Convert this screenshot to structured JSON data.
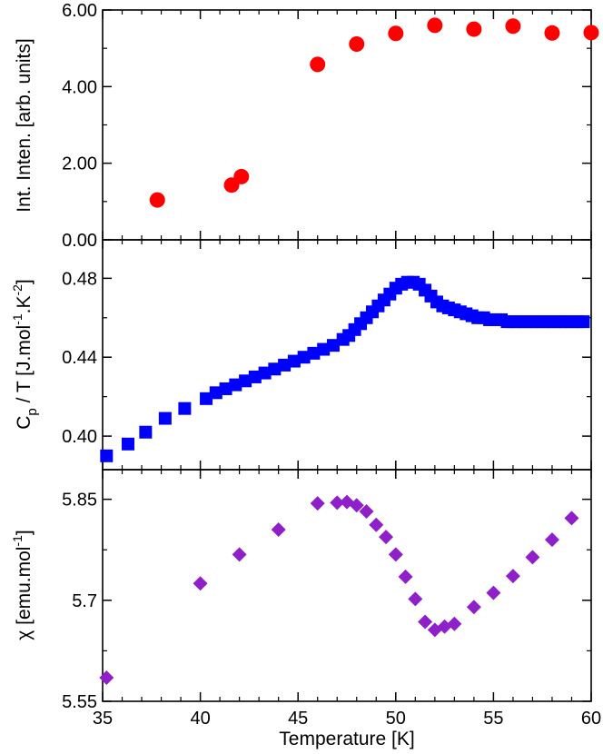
{
  "chart_data": [
    {
      "type": "scatter",
      "ylabel": "Int. Inten. [arb. units]",
      "xlim": [
        35,
        60
      ],
      "ylim": [
        0,
        6
      ],
      "yticks": [
        "0.00",
        "2.00",
        "4.00",
        "6.00"
      ],
      "marker": "circle",
      "color": "#ff0000",
      "x": [
        37.8,
        41.6,
        42.1,
        46.0,
        48.0,
        50.0,
        52.0,
        54.0,
        56.0,
        58.0,
        60.0
      ],
      "y": [
        1.04,
        1.43,
        1.65,
        4.58,
        5.11,
        5.39,
        5.6,
        5.5,
        5.58,
        5.4,
        5.41
      ]
    },
    {
      "type": "scatter",
      "ylabel_main": "C",
      "ylabel_sub": "p",
      "ylabel_rest1": " / T [J.mol",
      "ylabel_sup1": "-1",
      "ylabel_rest2": ".K",
      "ylabel_sup2": "-2",
      "ylabel_end": "]",
      "xlim": [
        35,
        60
      ],
      "ylim": [
        0.383,
        0.4995
      ],
      "yticks": [
        "0.40",
        "0.44",
        "0.48"
      ],
      "ytick_values": [
        0.4,
        0.44,
        0.48
      ],
      "marker": "square",
      "color": "#0000ff",
      "x": [
        35.2,
        36.3,
        37.2,
        38.2,
        39.2,
        40.3,
        40.8,
        41.3,
        41.8,
        42.3,
        42.8,
        43.3,
        43.8,
        44.3,
        44.8,
        45.3,
        45.8,
        46.3,
        46.8,
        47.3,
        47.6,
        47.9,
        48.2,
        48.5,
        48.8,
        49.1,
        49.4,
        49.7,
        50.0,
        50.3,
        50.6,
        50.9,
        51.2,
        51.5,
        51.8,
        52.1,
        52.4,
        52.7,
        53.0,
        53.3,
        53.6,
        53.9,
        54.2,
        54.5,
        54.8,
        55.1,
        55.4,
        55.7,
        56.0,
        56.3,
        56.6,
        56.9,
        57.2,
        57.5,
        57.8,
        58.1,
        58.4,
        58.7,
        59.0,
        59.3,
        59.6
      ],
      "y": [
        0.39,
        0.396,
        0.402,
        0.409,
        0.414,
        0.419,
        0.422,
        0.424,
        0.426,
        0.428,
        0.43,
        0.432,
        0.434,
        0.436,
        0.438,
        0.44,
        0.442,
        0.444,
        0.446,
        0.449,
        0.451,
        0.454,
        0.457,
        0.46,
        0.463,
        0.466,
        0.469,
        0.472,
        0.475,
        0.477,
        0.478,
        0.478,
        0.477,
        0.474,
        0.471,
        0.468,
        0.466,
        0.465,
        0.464,
        0.463,
        0.462,
        0.461,
        0.46,
        0.46,
        0.459,
        0.459,
        0.459,
        0.458,
        0.458,
        0.458,
        0.458,
        0.458,
        0.458,
        0.458,
        0.458,
        0.458,
        0.458,
        0.458,
        0.458,
        0.458,
        0.458
      ]
    },
    {
      "type": "scatter",
      "ylabel_main": "χ [emu.mol",
      "ylabel_sup": "-1",
      "ylabel_end": "]",
      "xlabel": "Temperature [K]",
      "xlim": [
        35,
        60
      ],
      "xticks": [
        "35",
        "40",
        "45",
        "50",
        "55",
        "60"
      ],
      "xtick_values": [
        35,
        40,
        45,
        50,
        55,
        60
      ],
      "ylim": [
        5.55,
        5.894
      ],
      "yticks": [
        "5.55",
        "5.7",
        "5.85"
      ],
      "ytick_values": [
        5.55,
        5.7,
        5.85
      ],
      "marker": "diamond",
      "color": "#8e1fc9",
      "x": [
        35.2,
        40.0,
        42.0,
        44.0,
        46.0,
        47.0,
        47.5,
        48.0,
        48.5,
        49.0,
        49.5,
        50.0,
        50.5,
        51.0,
        51.5,
        52.0,
        52.5,
        53.0,
        54.0,
        55.0,
        56.0,
        57.0,
        58.0,
        59.0
      ],
      "y": [
        5.585,
        5.725,
        5.768,
        5.805,
        5.844,
        5.845,
        5.846,
        5.841,
        5.832,
        5.812,
        5.794,
        5.768,
        5.735,
        5.702,
        5.668,
        5.656,
        5.661,
        5.665,
        5.69,
        5.711,
        5.736,
        5.764,
        5.79,
        5.822
      ]
    }
  ]
}
